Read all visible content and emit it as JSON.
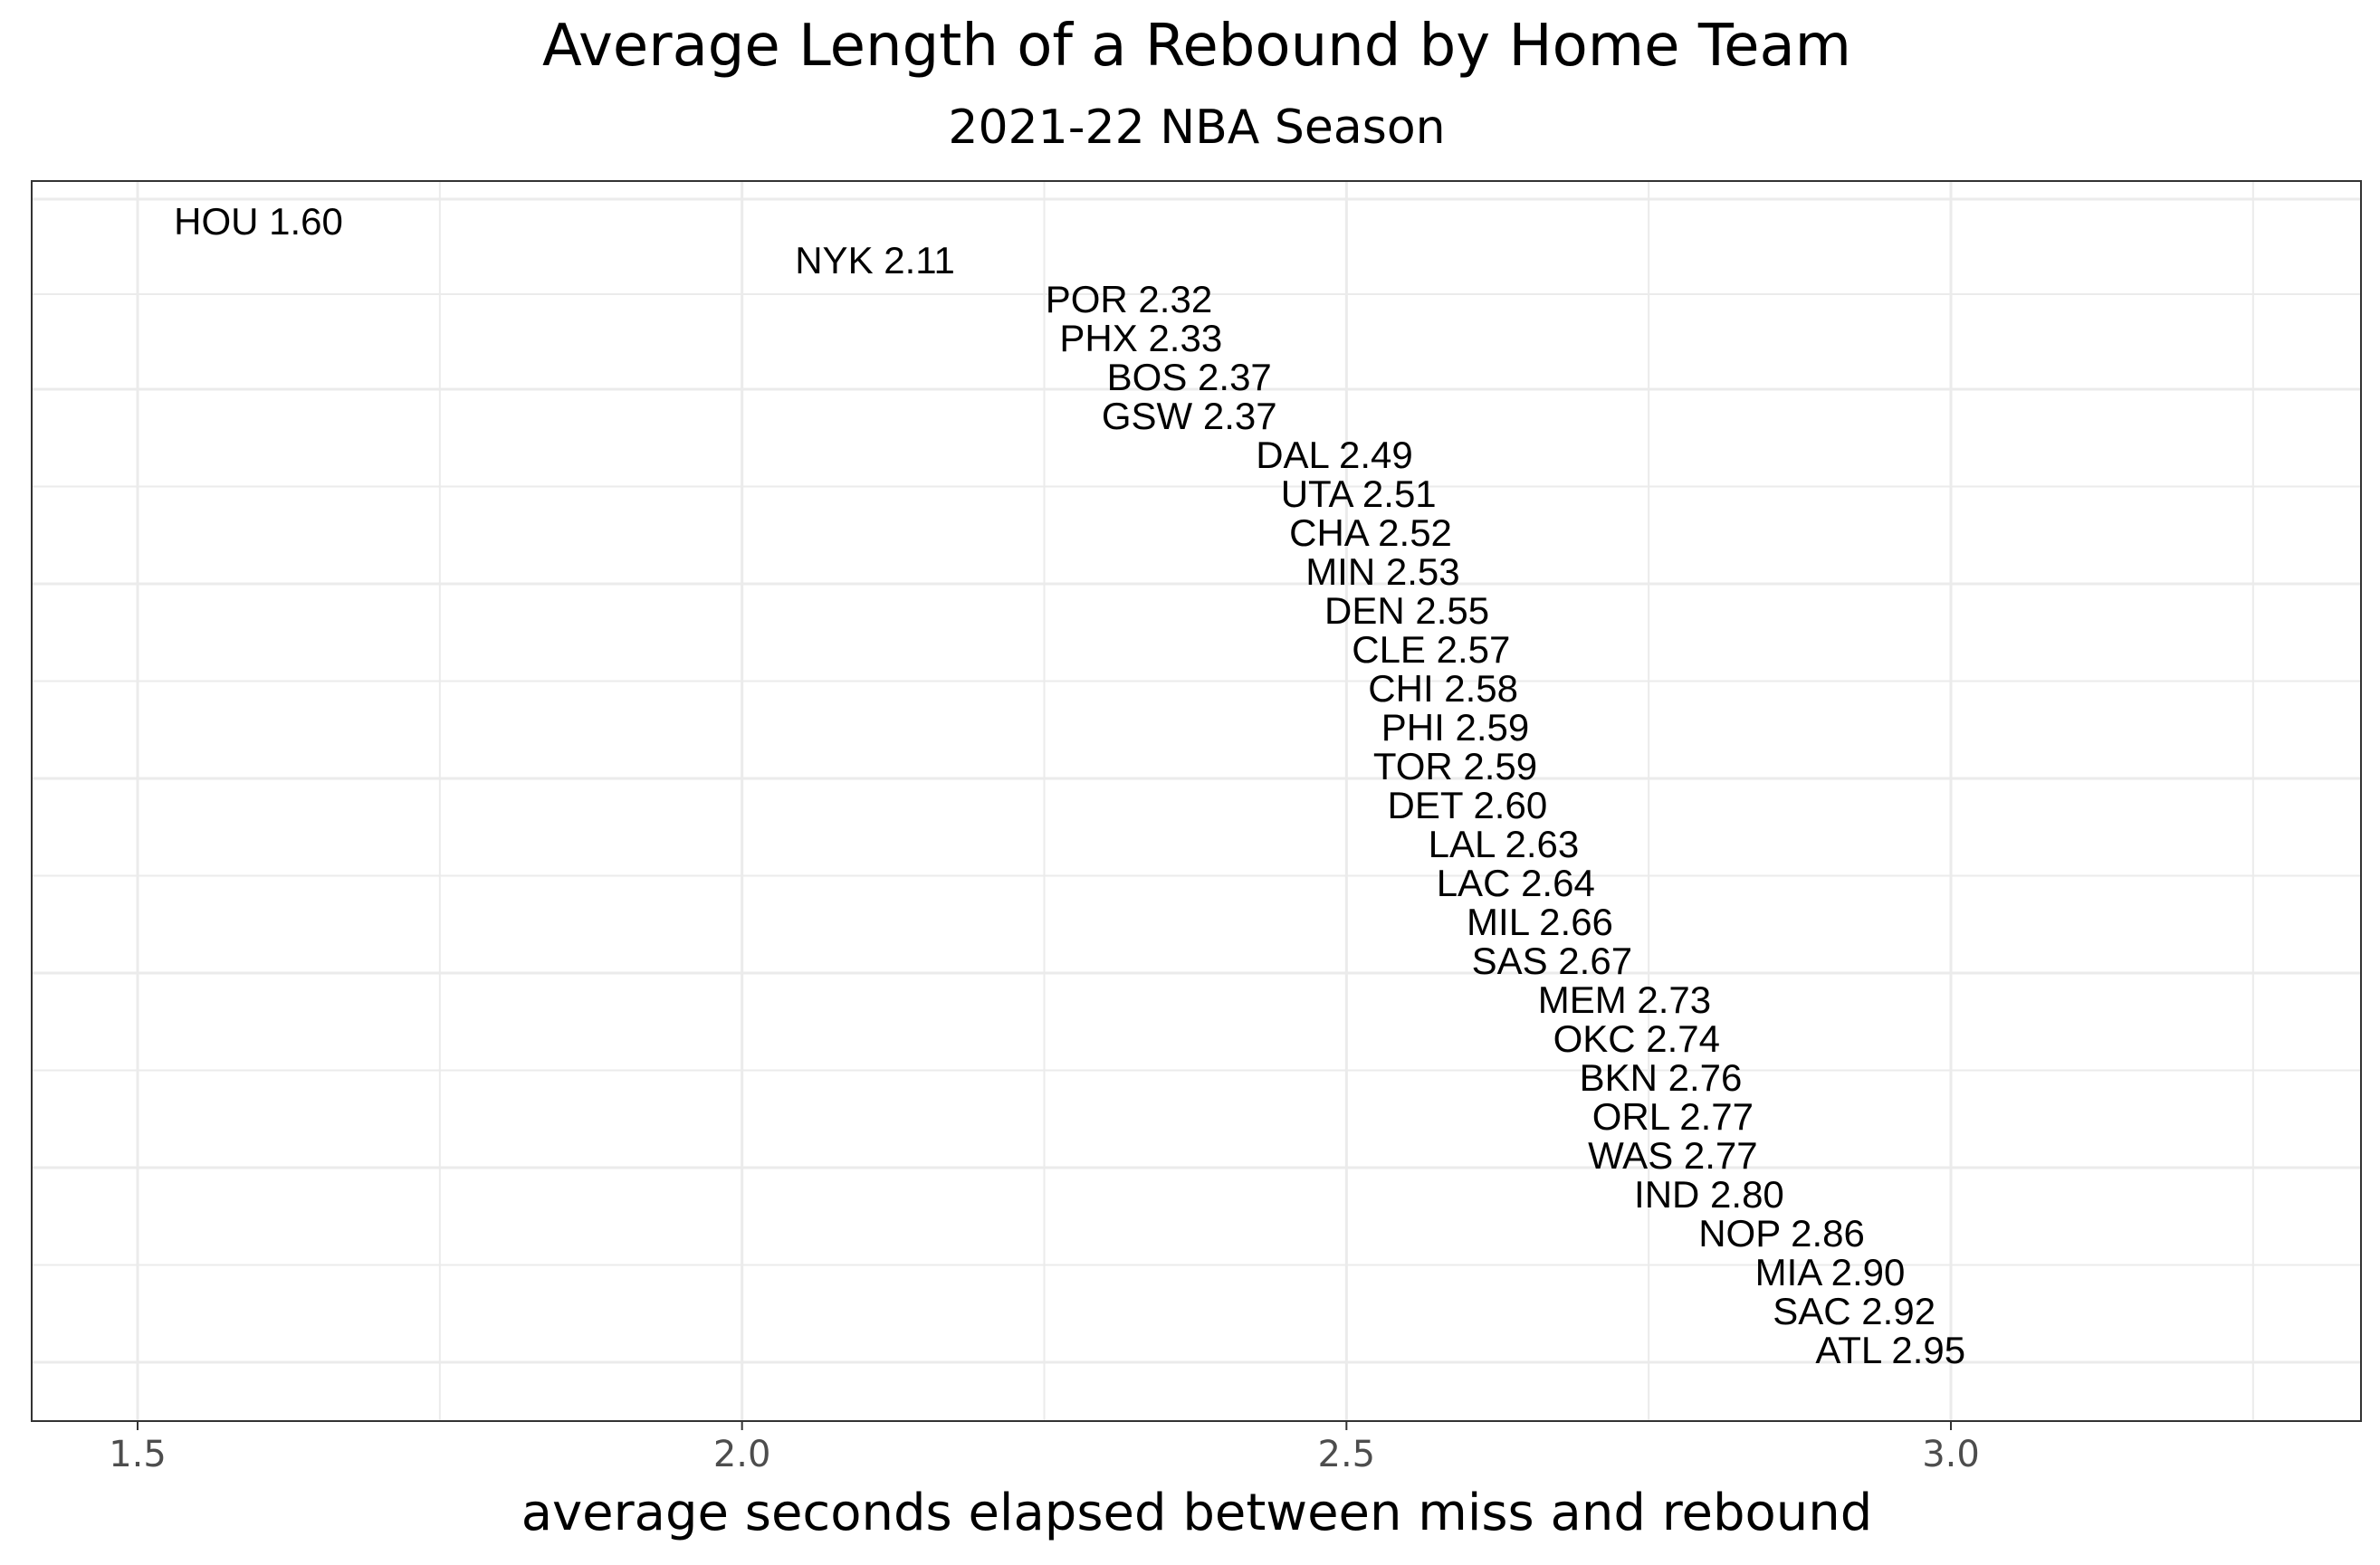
{
  "chart_data": {
    "type": "scatter",
    "title": "Average Length of a Rebound by Home Team",
    "subtitle": "2021-22 NBA Season",
    "xlabel": "average seconds elapsed between miss and rebound",
    "ylabel": "",
    "xlim": [
      1.5,
      3.3
    ],
    "x_ticks": [
      "1.5",
      "2.0",
      "2.5",
      "3.0"
    ],
    "grid": true,
    "legend": "none",
    "points": [
      {
        "team": "HOU",
        "label": "HOU 1.60",
        "x": 1.6
      },
      {
        "team": "NYK",
        "label": "NYK 2.11",
        "x": 2.11
      },
      {
        "team": "POR",
        "label": "POR 2.32",
        "x": 2.32
      },
      {
        "team": "PHX",
        "label": "PHX 2.33",
        "x": 2.33
      },
      {
        "team": "BOS",
        "label": "BOS 2.37",
        "x": 2.37
      },
      {
        "team": "GSW",
        "label": "GSW 2.37",
        "x": 2.37
      },
      {
        "team": "DAL",
        "label": "DAL 2.49",
        "x": 2.49
      },
      {
        "team": "UTA",
        "label": "UTA 2.51",
        "x": 2.51
      },
      {
        "team": "CHA",
        "label": "CHA 2.52",
        "x": 2.52
      },
      {
        "team": "MIN",
        "label": "MIN 2.53",
        "x": 2.53
      },
      {
        "team": "DEN",
        "label": "DEN 2.55",
        "x": 2.55
      },
      {
        "team": "CLE",
        "label": "CLE 2.57",
        "x": 2.57
      },
      {
        "team": "CHI",
        "label": "CHI 2.58",
        "x": 2.58
      },
      {
        "team": "PHI",
        "label": "PHI 2.59",
        "x": 2.59
      },
      {
        "team": "TOR",
        "label": "TOR 2.59",
        "x": 2.59
      },
      {
        "team": "DET",
        "label": "DET 2.60",
        "x": 2.6
      },
      {
        "team": "LAL",
        "label": "LAL 2.63",
        "x": 2.63
      },
      {
        "team": "LAC",
        "label": "LAC 2.64",
        "x": 2.64
      },
      {
        "team": "MIL",
        "label": "MIL 2.66",
        "x": 2.66
      },
      {
        "team": "SAS",
        "label": "SAS 2.67",
        "x": 2.67
      },
      {
        "team": "MEM",
        "label": "MEM 2.73",
        "x": 2.73
      },
      {
        "team": "OKC",
        "label": "OKC 2.74",
        "x": 2.74
      },
      {
        "team": "BKN",
        "label": "BKN 2.76",
        "x": 2.76
      },
      {
        "team": "ORL",
        "label": "ORL 2.77",
        "x": 2.77
      },
      {
        "team": "WAS",
        "label": "WAS 2.77",
        "x": 2.77
      },
      {
        "team": "IND",
        "label": "IND 2.80",
        "x": 2.8
      },
      {
        "team": "NOP",
        "label": "NOP 2.86",
        "x": 2.86
      },
      {
        "team": "MIA",
        "label": "MIA 2.90",
        "x": 2.9
      },
      {
        "team": "SAC",
        "label": "SAC 2.92",
        "x": 2.92
      },
      {
        "team": "ATL",
        "label": "ATL 2.95",
        "x": 2.95
      }
    ]
  }
}
